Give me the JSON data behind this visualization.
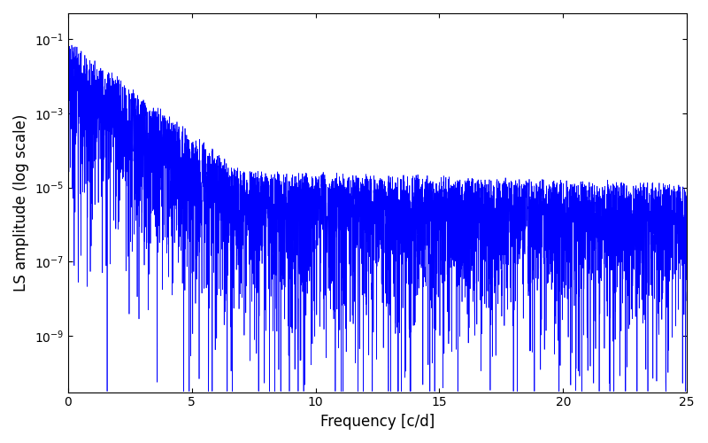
{
  "xlabel": "Frequency [c/d]",
  "ylabel": "LS amplitude (log scale)",
  "line_color": "#0000ff",
  "xlim": [
    0,
    25
  ],
  "ylim": [
    3e-11,
    0.5
  ],
  "figsize": [
    8.0,
    5.0
  ],
  "dpi": 100,
  "seed": 7777,
  "n_points": 5000,
  "freq_max": 25.0
}
